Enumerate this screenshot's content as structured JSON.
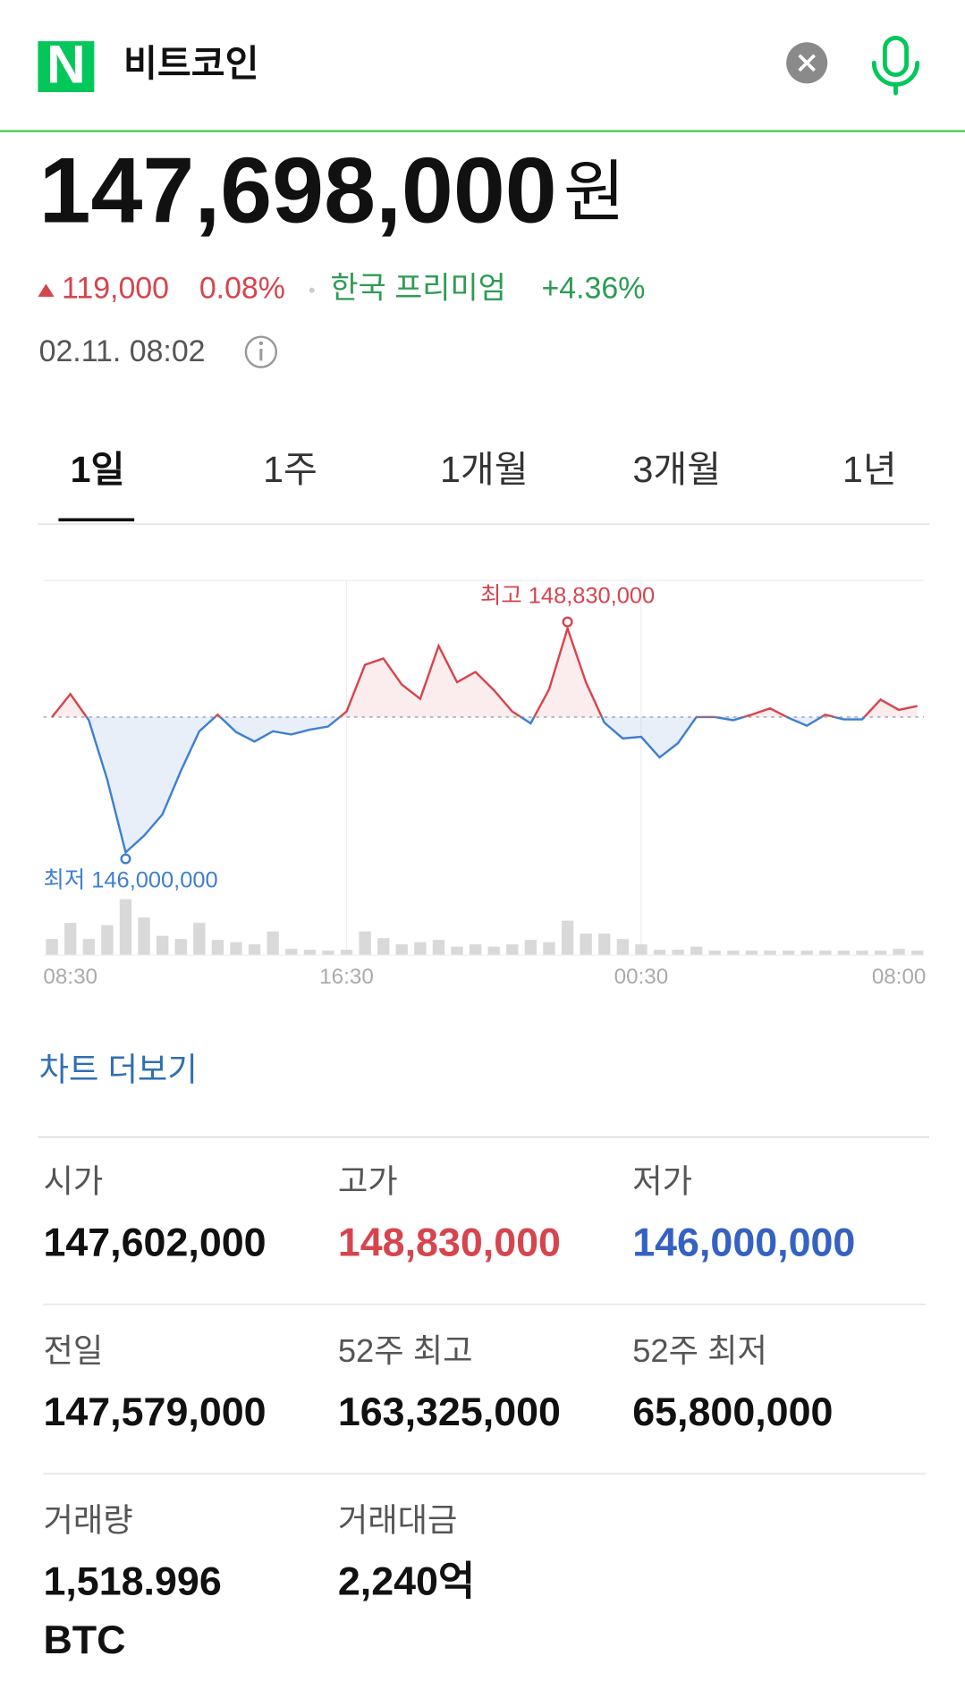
{
  "header": {
    "logo": "N",
    "query": "비트코인"
  },
  "price": {
    "value": "147,698,000",
    "unit": "원"
  },
  "change": {
    "amount": "119,000",
    "percent": "0.08%",
    "premium_label": "한국 프리미엄",
    "premium": "+4.36%"
  },
  "timestamp": "02.11. 08:02",
  "tabs": [
    "1일",
    "1주",
    "1개월",
    "3개월",
    "1년"
  ],
  "chart_data": {
    "type": "line",
    "categories": [
      null,
      "08:30",
      null,
      null,
      null,
      null,
      null,
      null,
      null,
      null,
      null,
      null,
      null,
      null,
      null,
      null,
      "16:30",
      null,
      null,
      null,
      null,
      null,
      null,
      null,
      null,
      null,
      null,
      null,
      null,
      null,
      null,
      null,
      "00:30",
      null,
      null,
      null,
      null,
      null,
      null,
      null,
      null,
      null,
      null,
      null,
      null,
      null,
      "08:00",
      null
    ],
    "series": [
      {
        "color": "#d6454e",
        "color_below": "#3f7fd1",
        "values": [
          147710000,
          148000000,
          147670000,
          146920000,
          146000000,
          146210000,
          146480000,
          147030000,
          147530000,
          147740000,
          147520000,
          147400000,
          147530000,
          147490000,
          147550000,
          147590000,
          147780000,
          148370000,
          148450000,
          148120000,
          147940000,
          148610000,
          148150000,
          148280000,
          148050000,
          147780000,
          147630000,
          148060000,
          148830000,
          148150000,
          147640000,
          147440000,
          147460000,
          147200000,
          147380000,
          147710000,
          147710000,
          147670000,
          147740000,
          147820000,
          147700000,
          147600000,
          147740000,
          147680000,
          147680000,
          147930000,
          147800000,
          147850000
        ]
      },
      {
        "type": "bar",
        "axis": "y2",
        "color": "#d9d9d9",
        "values": [
          36,
          72,
          36,
          67,
          125,
          84,
          43,
          36,
          72,
          34,
          29,
          24,
          53,
          14,
          12,
          10,
          12,
          53,
          38,
          24,
          29,
          34,
          19,
          24,
          19,
          24,
          34,
          29,
          77,
          48,
          48,
          36,
          24,
          12,
          12,
          19,
          10,
          10,
          10,
          10,
          10,
          10,
          10,
          10,
          10,
          10,
          14,
          10
        ]
      }
    ],
    "baseline": 147710000,
    "ylim": [
      145700000,
      149450000
    ],
    "y2lim": [
      0,
      150
    ],
    "grid": true,
    "high_label": "최고 148,830,000",
    "low_label": "최저 146,000,000"
  },
  "more_link": "차트 더보기",
  "stats": [
    [
      {
        "label": "시가",
        "value": "147,602,000"
      },
      {
        "label": "고가",
        "value": "148,830,000"
      },
      {
        "label": "저가",
        "value": "146,000,000"
      }
    ],
    [
      {
        "label": "전일",
        "value": "147,579,000"
      },
      {
        "label": "52주 최고",
        "value": "163,325,000"
      },
      {
        "label": "52주 최저",
        "value": "65,800,000"
      }
    ],
    [
      {
        "label": "거래량",
        "value": "1,518.996",
        "unit": "BTC"
      },
      {
        "label": "거래대금",
        "value": "2,240억"
      }
    ]
  ]
}
